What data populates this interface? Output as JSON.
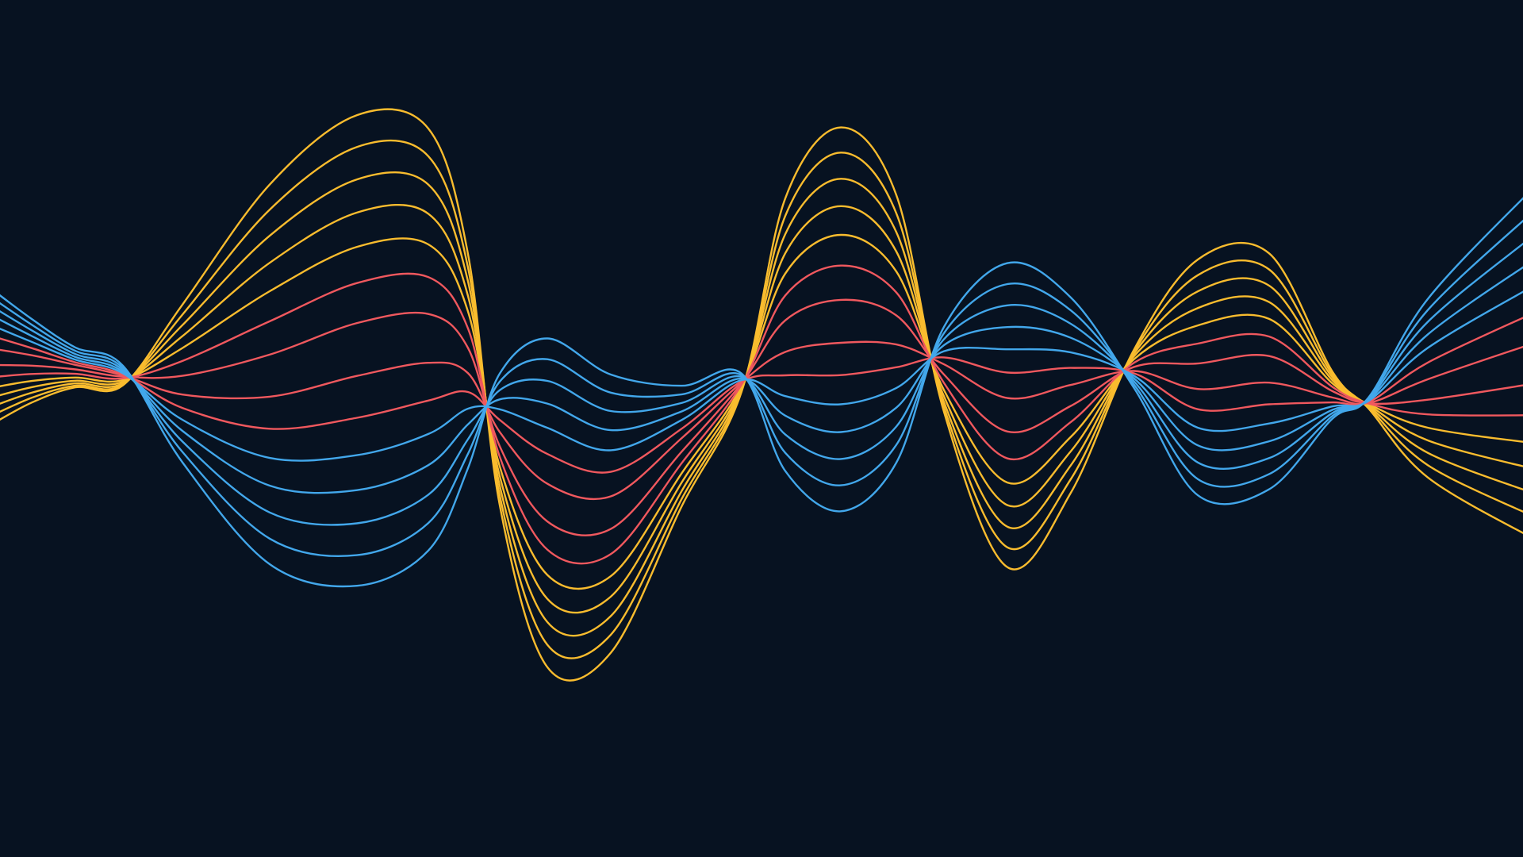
{
  "background_color": "#071221",
  "palette": {
    "yellow": "#F9BC2E",
    "red": "#F0585E",
    "blue": "#42A7EB"
  },
  "line_groups": [
    {
      "name": "yellow-lines",
      "color_key": "yellow",
      "count": 5
    },
    {
      "name": "red-lines",
      "color_key": "red",
      "count": 4
    },
    {
      "name": "blue-lines",
      "color_key": "blue",
      "count": 5
    }
  ]
}
